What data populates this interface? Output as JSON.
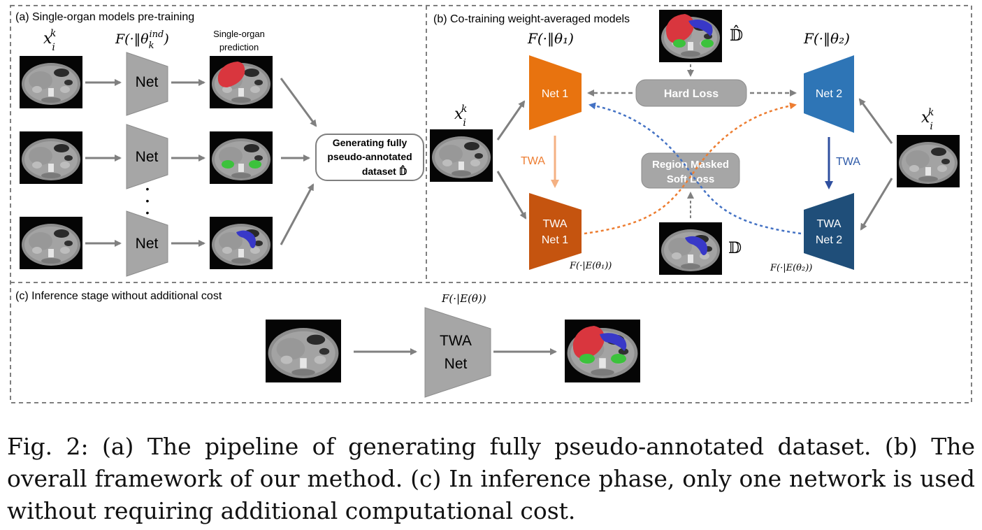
{
  "panels": {
    "a": {
      "title": "(a) Single-organ models pre-training"
    },
    "b": {
      "title": "(b)  Co-training weight-averaged models"
    },
    "c": {
      "title": "(c) Inference stage without  additional cost"
    }
  },
  "math": {
    "xik": "x",
    "xik_sup": "k",
    "xik_sub": "i",
    "f_ind": "F(·‖θ",
    "f_ind_sub": "k",
    "f_ind_sup": "ind",
    "f_theta1": "F(·‖θ₁)",
    "f_theta2": "F(·‖θ₂)",
    "f_e1": "F(·|E(θ₁))",
    "f_e2": "F(·|E(θ₂))",
    "f_e": "F(·|E(θ))",
    "dhat": "𝔻̂",
    "d": "𝔻"
  },
  "labels": {
    "net": "Net",
    "single_organ": "Single-organ",
    "prediction": "prediction",
    "gen_line1": "Generating fully",
    "gen_line2": "pseudo-annotated",
    "gen_line3": "dataset 𝔻̂",
    "net1": "Net 1",
    "net2": "Net 2",
    "twa": "TWA",
    "twa_net1_l1": "TWA",
    "twa_net1_l2": "Net 1",
    "twa_net2_l1": "TWA",
    "twa_net2_l2": "Net 2",
    "hard_loss": "Hard Loss",
    "rms_l1": "Region Masked",
    "rms_l2": "Soft Loss",
    "twa_net_l1": "TWA",
    "twa_net_l2": "Net",
    "dots": "•"
  },
  "colors": {
    "gray_net": "#a6a6a6",
    "net1": "#e8730f",
    "twa_net1": "#c5540f",
    "net2": "#2e75b6",
    "twa_net2": "#1f4e79",
    "orange_dash": "#ed7d31",
    "blue_dash": "#4472c4",
    "arrow_gray": "#808080",
    "twa_light_orange": "#f4b183",
    "twa_dark_blue": "#2f4f9f",
    "liver_red": "#d9363e",
    "kidney_green": "#3cc23c",
    "pancreas_blue": "#3838c8"
  },
  "caption": "Fig. 2: (a) The pipeline of generating fully pseudo-annotated dataset. (b) The overall framework of our method. (c) In inference phase, only one network is used without requiring additional computational cost."
}
